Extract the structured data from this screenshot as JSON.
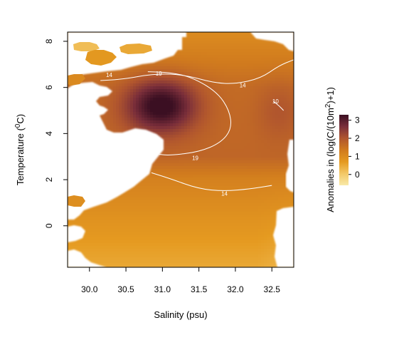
{
  "chart_data": {
    "type": "heatmap",
    "title": "",
    "xlabel": "Salinity (psu)",
    "ylabel_main": "Temperature (",
    "ylabel_sup": "0",
    "ylabel_end": "C)",
    "xlim": [
      29.7,
      32.8
    ],
    "ylim": [
      -1.8,
      8.4
    ],
    "x_ticks": [
      30.0,
      30.5,
      31.0,
      31.5,
      32.0,
      32.5
    ],
    "x_tick_labels": [
      "30.0",
      "30.5",
      "31.0",
      "31.5",
      "32.0",
      "32.5"
    ],
    "y_ticks": [
      0,
      2,
      4,
      6,
      8
    ],
    "y_tick_labels": [
      "0",
      "2",
      "4",
      "6",
      "8"
    ],
    "colorbar": {
      "label_main": "Anomalies in (log(C/(10m",
      "label_sup": "2",
      "label_end": ")+1)",
      "range": [
        -0.6,
        3.3
      ],
      "ticks": [
        0,
        1,
        2,
        3
      ],
      "tick_labels": [
        "0",
        "1",
        "2",
        "3"
      ],
      "colors": [
        "#f8e9a8",
        "#f3c866",
        "#e59a20",
        "#d07a1e",
        "#b0552e",
        "#7a2e3a",
        "#3b0f22"
      ]
    },
    "field_model": {
      "base": [
        {
          "t": -1.8,
          "v": 0.5
        },
        {
          "t": 0.5,
          "v": 0.9
        },
        {
          "t": 2.0,
          "v": 1.2
        },
        {
          "t": 3.0,
          "v": 1.7
        },
        {
          "t": 6.0,
          "v": 1.6
        },
        {
          "t": 8.4,
          "v": 1.0
        }
      ],
      "peak": {
        "x": 30.98,
        "y": 5.2,
        "amp": 1.85,
        "sx": 0.48,
        "sy": 1.15
      },
      "right_bump": {
        "x": 32.6,
        "y": 5.0,
        "amp": 0.35,
        "sx": 0.3,
        "sy": 1.2
      }
    },
    "contours": [
      {
        "label": "14",
        "points": [
          [
            30.15,
            6.3
          ],
          [
            30.45,
            6.35
          ],
          [
            30.9,
            6.6
          ],
          [
            31.3,
            6.55
          ],
          [
            31.7,
            6.2
          ],
          [
            32.0,
            6.15
          ],
          [
            32.35,
            6.4
          ],
          [
            32.6,
            6.95
          ],
          [
            32.8,
            7.2
          ]
        ],
        "label_at": [
          30.27,
          6.55
        ]
      },
      {
        "label": "19",
        "points": [
          [
            30.8,
            6.68
          ],
          [
            31.1,
            6.65
          ],
          [
            31.4,
            6.45
          ],
          [
            31.75,
            5.8
          ],
          [
            31.92,
            5.0
          ],
          [
            31.95,
            4.2
          ],
          [
            31.8,
            3.6
          ],
          [
            31.5,
            3.2
          ],
          [
            31.1,
            3.05
          ],
          [
            30.95,
            3.1
          ]
        ],
        "label_at": [
          30.95,
          6.6
        ],
        "label2": "19",
        "label2_at": [
          31.45,
          2.95
        ]
      },
      {
        "label": "14",
        "points": [
          [
            32.05,
            6.1
          ],
          [
            32.4,
            6.2
          ]
        ],
        "label_at": [
          32.1,
          6.1
        ],
        "hidden_line": true
      },
      {
        "label": "10",
        "points": [
          [
            32.52,
            5.4
          ],
          [
            32.6,
            5.2
          ],
          [
            32.66,
            5.0
          ]
        ],
        "label_at": [
          32.55,
          5.4
        ]
      },
      {
        "label": "14",
        "points": [
          [
            30.85,
            2.3
          ],
          [
            31.1,
            2.05
          ],
          [
            31.5,
            1.6
          ],
          [
            31.85,
            1.5
          ],
          [
            32.2,
            1.6
          ],
          [
            32.5,
            1.75
          ]
        ],
        "label_at": [
          31.85,
          1.4
        ]
      }
    ]
  }
}
